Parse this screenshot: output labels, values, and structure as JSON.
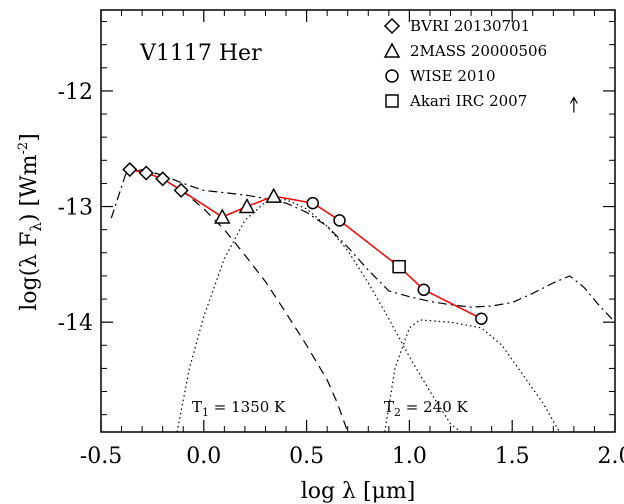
{
  "chart_data": {
    "type": "scatter",
    "title": "V1117 Her",
    "xlabel": "log λ [μm]",
    "ylabel_main": "log(λ F",
    "ylabel_sub": "λ",
    "ylabel_unit": ") [Wm",
    "ylabel_exp": "-2",
    "ylabel_close": "]",
    "xlim": [
      -0.5,
      2.0
    ],
    "ylim": [
      -14.95,
      -11.3
    ],
    "xticks": [
      -0.5,
      0.0,
      0.5,
      1.0,
      1.5,
      2.0
    ],
    "xtick_labels": [
      "-0.5",
      "0.0",
      "0.5",
      "1.0",
      "1.5",
      "2.0"
    ],
    "yticks": [
      -14,
      -13,
      -12
    ],
    "ytick_labels": [
      "-14",
      "-13",
      "-12"
    ],
    "series": [
      {
        "name": "BVRI 20130701",
        "marker": "diamond",
        "x": [
          -0.36,
          -0.28,
          -0.2,
          -0.11
        ],
        "y": [
          -12.68,
          -12.71,
          -12.76,
          -12.86
        ]
      },
      {
        "name": "2MASS 20000506",
        "marker": "triangle",
        "x": [
          0.09,
          0.21,
          0.34
        ],
        "y": [
          -13.09,
          -13.0,
          -12.91
        ]
      },
      {
        "name": "WISE 2010",
        "marker": "circle",
        "x": [
          0.53,
          0.66,
          1.07,
          1.35
        ],
        "y": [
          -12.97,
          -13.12,
          -13.72,
          -13.97
        ]
      },
      {
        "name": "Akari IRC 2007",
        "marker": "square",
        "x": [
          0.95
        ],
        "y": [
          -13.52
        ]
      }
    ],
    "red_line": {
      "color": "#ff0000",
      "x": [
        -0.36,
        -0.28,
        -0.2,
        -0.11,
        0.09,
        0.21,
        0.34,
        0.53,
        0.66,
        0.95,
        1.07,
        1.35
      ],
      "y": [
        -12.68,
        -12.71,
        -12.76,
        -12.86,
        -13.09,
        -13.0,
        -12.91,
        -12.97,
        -13.12,
        -13.52,
        -13.72,
        -13.97
      ]
    },
    "dashed_curve": {
      "x": [
        -0.38,
        -0.3,
        -0.2,
        -0.1,
        0.0,
        0.1,
        0.2,
        0.3,
        0.4,
        0.5,
        0.6,
        0.65,
        0.7
      ],
      "y": [
        -12.67,
        -12.7,
        -12.76,
        -12.87,
        -13.02,
        -13.2,
        -13.42,
        -13.65,
        -13.92,
        -14.2,
        -14.5,
        -14.7,
        -14.95
      ]
    },
    "dotted_curve_1": {
      "x": [
        -0.13,
        -0.07,
        0.0,
        0.1,
        0.2,
        0.3,
        0.4,
        0.5,
        0.6,
        0.7,
        0.8,
        0.9,
        1.0,
        1.1,
        1.2,
        1.25
      ],
      "y": [
        -14.95,
        -14.4,
        -13.95,
        -13.45,
        -13.12,
        -12.96,
        -12.94,
        -13.02,
        -13.17,
        -13.38,
        -13.66,
        -13.97,
        -14.3,
        -14.6,
        -14.88,
        -14.95
      ]
    },
    "dotted_curve_2": {
      "x": [
        0.88,
        0.93,
        1.0,
        1.05,
        1.2,
        1.35,
        1.45,
        1.55,
        1.65,
        1.73
      ],
      "y": [
        -14.95,
        -14.4,
        -14.05,
        -13.98,
        -14.0,
        -14.05,
        -14.2,
        -14.45,
        -14.7,
        -14.95
      ]
    },
    "dashdot_curve": {
      "x": [
        -0.45,
        -0.38,
        -0.3,
        -0.2,
        -0.1,
        0.0,
        0.1,
        0.2,
        0.3,
        0.4,
        0.5,
        0.6,
        0.7,
        0.8,
        0.9,
        1.0,
        1.1,
        1.2,
        1.3,
        1.4,
        1.5,
        1.6,
        1.7,
        1.78,
        1.85,
        1.92,
        2.0
      ],
      "y": [
        -13.1,
        -12.72,
        -12.68,
        -12.73,
        -12.8,
        -12.86,
        -12.88,
        -12.9,
        -12.93,
        -12.97,
        -13.05,
        -13.17,
        -13.35,
        -13.55,
        -13.73,
        -13.78,
        -13.82,
        -13.85,
        -13.87,
        -13.86,
        -13.83,
        -13.75,
        -13.66,
        -13.6,
        -13.7,
        -13.85,
        -14.0
      ]
    },
    "arrow": {
      "x": 1.8,
      "y": -12.1
    },
    "annotations": [
      {
        "label": "T",
        "sub": "1",
        "rest": " = 1350 K",
        "x": 0.08,
        "y": -14.75
      },
      {
        "label": "T",
        "sub": "2",
        "rest": " =  240 K",
        "x": 0.91,
        "y": -14.75
      }
    ]
  }
}
